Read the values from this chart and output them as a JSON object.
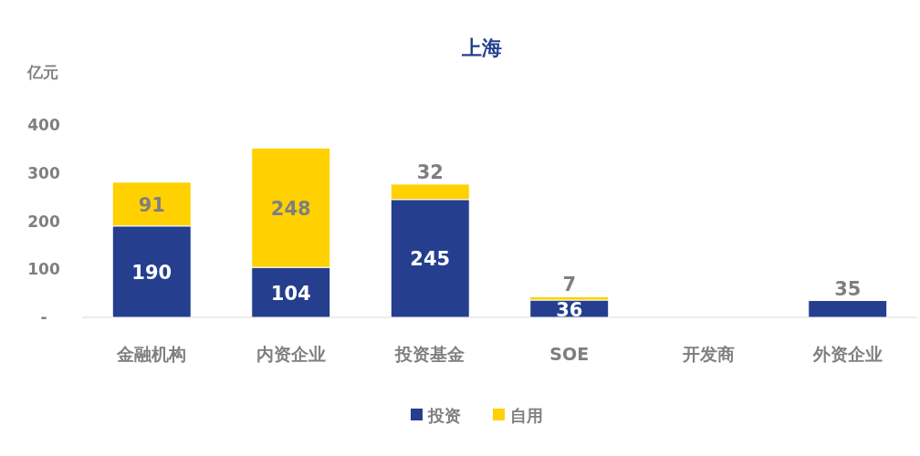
{
  "chart_data": {
    "type": "bar",
    "title": "上海",
    "ylabel": "亿元",
    "stacked": true,
    "categories": [
      "金融机构",
      "内资企业",
      "投资基金",
      "SOE",
      "开发商",
      "外资企业"
    ],
    "series": [
      {
        "name": "投资",
        "color": "#253f8e",
        "values": [
          190,
          104,
          245,
          36,
          null,
          35
        ],
        "value_labels": [
          "190",
          "104",
          "245",
          "36",
          null,
          "35"
        ]
      },
      {
        "name": "自用",
        "color": "#ffd100",
        "values": [
          91,
          248,
          32,
          7,
          null,
          null
        ],
        "value_labels": [
          "91",
          "248",
          "32",
          "7",
          null,
          null
        ]
      }
    ],
    "ylim": [
      0,
      400
    ],
    "yticks": [
      {
        "value": 0,
        "label": "-"
      },
      100,
      200,
      300,
      400
    ],
    "grid": false,
    "legend": "bottom"
  }
}
